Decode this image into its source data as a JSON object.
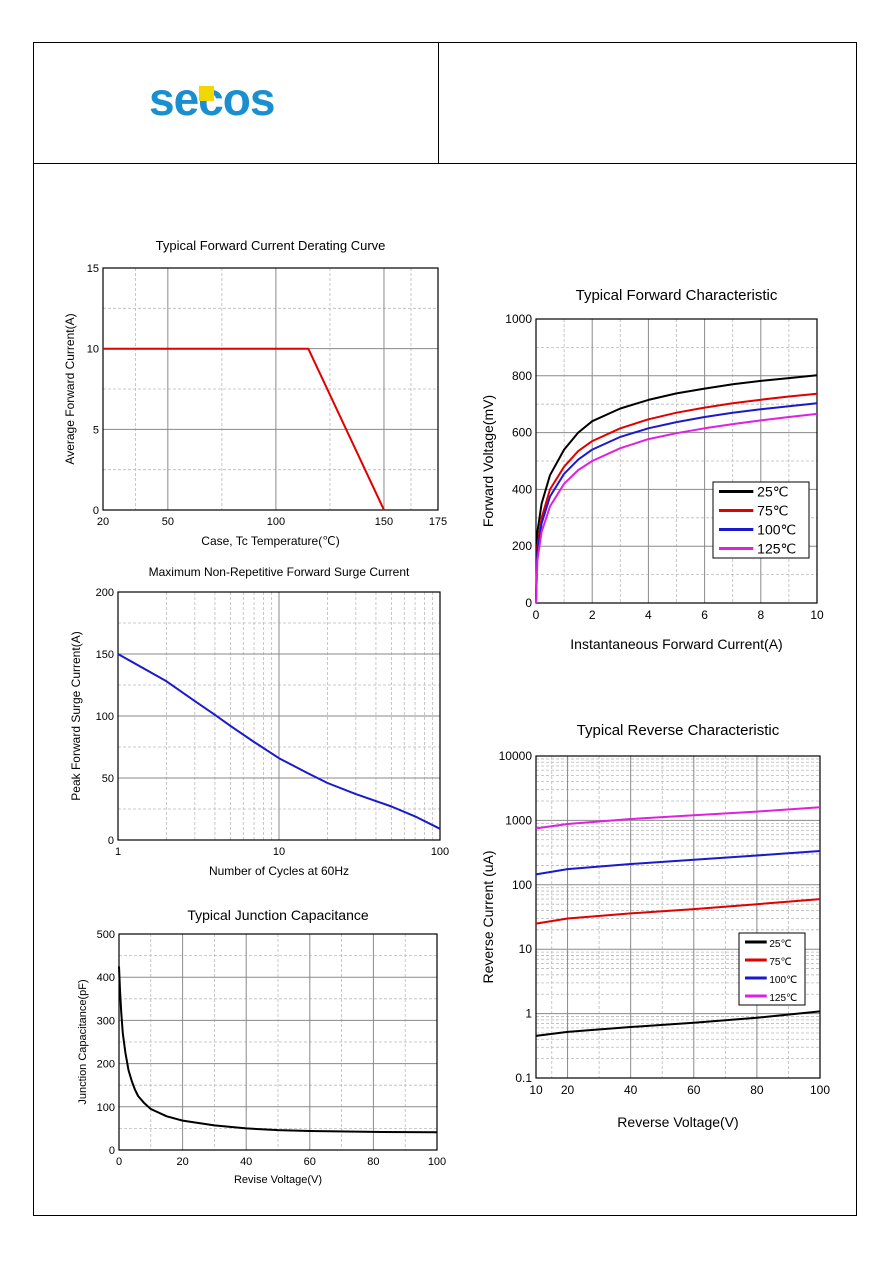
{
  "logo_text": "secos",
  "chart_data": [
    {
      "id": "derating",
      "type": "line",
      "title": "Typical Forward Current Derating Curve",
      "xlabel": "Case, Tc Temperature(℃)",
      "ylabel": "Average Forward Current(A)",
      "xlim": [
        20,
        175
      ],
      "ylim": [
        0,
        15
      ],
      "xticks": [
        20,
        50,
        100,
        150,
        175
      ],
      "yticks": [
        0,
        5,
        10,
        15
      ],
      "grid": true,
      "series": [
        {
          "color": "#e00000",
          "x": [
            20,
            115,
            150
          ],
          "y": [
            10,
            10,
            0
          ]
        }
      ]
    },
    {
      "id": "surge",
      "type": "line",
      "title": "Maximum Non-Repetitive Forward Surge Current",
      "xlabel": "Number of Cycles at 60Hz",
      "ylabel": "Peak Forward Surge Current(A)",
      "xscale": "log",
      "xlim": [
        1,
        100
      ],
      "ylim": [
        0,
        200
      ],
      "xticks": [
        1,
        10,
        100
      ],
      "yticks": [
        0,
        50,
        100,
        150,
        200
      ],
      "grid": true,
      "series": [
        {
          "color": "#1a1acc",
          "x": [
            1,
            2,
            3,
            4,
            5,
            7,
            10,
            15,
            20,
            30,
            50,
            70,
            100
          ],
          "y": [
            150,
            128,
            112,
            101,
            92,
            79,
            66,
            54,
            46,
            37,
            27,
            19,
            9
          ]
        }
      ]
    },
    {
      "id": "capacitance",
      "type": "line",
      "title": "Typical Junction Capacitance",
      "xlabel": "Revise Voltage(V)",
      "ylabel": "Junction Capacitance(pF)",
      "xlim": [
        0,
        100
      ],
      "ylim": [
        0,
        500
      ],
      "xticks": [
        0,
        20,
        40,
        60,
        80,
        100
      ],
      "yticks": [
        0,
        100,
        200,
        300,
        400,
        500
      ],
      "grid": true,
      "series": [
        {
          "color": "#000000",
          "x": [
            0,
            0.3,
            0.7,
            1.2,
            2,
            3,
            4,
            5,
            6,
            8,
            10,
            15,
            20,
            30,
            40,
            50,
            60,
            80,
            100
          ],
          "y": [
            425,
            370,
            320,
            270,
            225,
            185,
            160,
            140,
            125,
            108,
            95,
            78,
            68,
            57,
            50,
            46,
            44,
            42,
            41
          ]
        }
      ]
    },
    {
      "id": "forward",
      "type": "line",
      "title": "Typical Forward Characteristic",
      "xlabel": "Instantaneous Forward Current(A)",
      "ylabel": "Forward Voltage(mV)",
      "xlim": [
        0,
        10
      ],
      "ylim": [
        0,
        1000
      ],
      "xticks": [
        0,
        2,
        4,
        6,
        8,
        10
      ],
      "yticks": [
        0,
        200,
        400,
        600,
        800,
        1000
      ],
      "grid": true,
      "legend": "right-bottom",
      "series": [
        {
          "name": "25℃",
          "color": "#000000",
          "x": [
            0,
            0.05,
            0.2,
            0.5,
            1,
            1.5,
            2,
            3,
            4,
            5,
            6,
            7,
            8,
            9,
            10
          ],
          "y": [
            0,
            250,
            350,
            450,
            540,
            600,
            640,
            685,
            715,
            738,
            755,
            770,
            782,
            792,
            802
          ]
        },
        {
          "name": "75℃",
          "color": "#e00000",
          "x": [
            0,
            0.05,
            0.2,
            0.5,
            1,
            1.5,
            2,
            3,
            4,
            5,
            6,
            7,
            8,
            9,
            10
          ],
          "y": [
            0,
            200,
            300,
            400,
            480,
            535,
            570,
            615,
            647,
            670,
            688,
            703,
            716,
            727,
            737
          ]
        },
        {
          "name": "100℃",
          "color": "#1a1acc",
          "x": [
            0,
            0.05,
            0.2,
            0.5,
            1,
            1.5,
            2,
            3,
            4,
            5,
            6,
            7,
            8,
            9,
            10
          ],
          "y": [
            0,
            180,
            280,
            375,
            455,
            505,
            540,
            585,
            615,
            637,
            655,
            670,
            682,
            693,
            703
          ]
        },
        {
          "name": "125℃",
          "color": "#e020e0",
          "x": [
            0,
            0.05,
            0.2,
            0.5,
            1,
            1.5,
            2,
            3,
            4,
            5,
            6,
            7,
            8,
            9,
            10
          ],
          "y": [
            0,
            150,
            250,
            340,
            420,
            468,
            500,
            545,
            577,
            598,
            615,
            630,
            643,
            655,
            666
          ]
        }
      ]
    },
    {
      "id": "reverse",
      "type": "line",
      "title": "Typical Reverse Characteristic",
      "xlabel": "Reverse Voltage(V)",
      "ylabel": "Reverse Current (uA)",
      "yscale": "log",
      "xlim": [
        10,
        100
      ],
      "ylim": [
        0.1,
        10000
      ],
      "xticks": [
        10,
        20,
        40,
        60,
        80,
        100
      ],
      "yticks": [
        0.1,
        1,
        10,
        100,
        1000,
        10000
      ],
      "yticklabels": [
        "0.1",
        "1",
        "10",
        "100",
        "1000",
        "10000"
      ],
      "grid": true,
      "legend": "right-middle",
      "series": [
        {
          "name": "25℃",
          "color": "#000000",
          "x": [
            10,
            20,
            40,
            60,
            80,
            100
          ],
          "y": [
            0.45,
            0.52,
            0.62,
            0.72,
            0.86,
            1.08
          ]
        },
        {
          "name": "75℃",
          "color": "#e00000",
          "x": [
            10,
            20,
            40,
            60,
            80,
            100
          ],
          "y": [
            25,
            30,
            36,
            42,
            50,
            60
          ]
        },
        {
          "name": "100℃",
          "color": "#1a1acc",
          "x": [
            10,
            20,
            40,
            60,
            80,
            100
          ],
          "y": [
            145,
            175,
            210,
            245,
            285,
            335
          ]
        },
        {
          "name": "125℃",
          "color": "#e020e0",
          "x": [
            10,
            20,
            40,
            60,
            80,
            100
          ],
          "y": [
            750,
            880,
            1050,
            1200,
            1370,
            1600
          ]
        }
      ]
    }
  ]
}
